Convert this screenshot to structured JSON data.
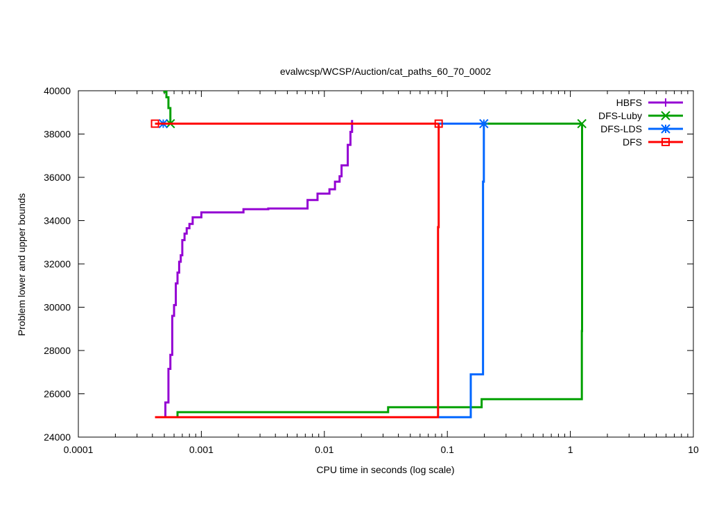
{
  "chart_data": {
    "type": "line",
    "title": "evalwcsp/WCSP/Auction/cat_paths_60_70_0002",
    "xlabel": "CPU time in seconds (log scale)",
    "ylabel": "Problem lower and upper bounds",
    "xscale": "log",
    "xlim": [
      0.0001,
      10
    ],
    "ylim": [
      24000,
      40000
    ],
    "x_ticks": [
      0.0001,
      0.001,
      0.01,
      0.1,
      1,
      10
    ],
    "x_tick_labels": [
      "0.0001",
      "0.001",
      "0.01",
      "0.1",
      "1",
      "10"
    ],
    "y_ticks": [
      24000,
      26000,
      28000,
      30000,
      32000,
      34000,
      36000,
      38000,
      40000
    ],
    "y_tick_labels": [
      "24000",
      "26000",
      "28000",
      "30000",
      "32000",
      "34000",
      "36000",
      "38000",
      "40000"
    ],
    "grid": false,
    "legend_position": "top-right",
    "series": [
      {
        "name": "HBFS",
        "color": "#9400d3",
        "marker": "plus",
        "lower": [
          [
            0.00051,
            24920
          ],
          [
            0.00051,
            25600
          ],
          [
            0.00054,
            25600
          ],
          [
            0.00054,
            27150
          ],
          [
            0.00056,
            27150
          ],
          [
            0.00056,
            27800
          ],
          [
            0.00058,
            27800
          ],
          [
            0.00058,
            29600
          ],
          [
            0.0006,
            29600
          ],
          [
            0.0006,
            30100
          ],
          [
            0.00062,
            30100
          ],
          [
            0.00062,
            31100
          ],
          [
            0.00064,
            31100
          ],
          [
            0.00064,
            31600
          ],
          [
            0.00066,
            31600
          ],
          [
            0.00066,
            32100
          ],
          [
            0.00068,
            32100
          ],
          [
            0.00068,
            32400
          ],
          [
            0.0007,
            32400
          ],
          [
            0.0007,
            33100
          ],
          [
            0.00073,
            33100
          ],
          [
            0.00073,
            33400
          ],
          [
            0.00076,
            33400
          ],
          [
            0.00076,
            33650
          ],
          [
            0.0008,
            33650
          ],
          [
            0.0008,
            33850
          ],
          [
            0.00085,
            33850
          ],
          [
            0.00085,
            34150
          ],
          [
            0.001,
            34150
          ],
          [
            0.001,
            34380
          ],
          [
            0.0022,
            34380
          ],
          [
            0.0022,
            34530
          ],
          [
            0.0035,
            34530
          ],
          [
            0.0035,
            34560
          ],
          [
            0.0073,
            34560
          ],
          [
            0.0073,
            34950
          ],
          [
            0.0088,
            34950
          ],
          [
            0.0088,
            35250
          ],
          [
            0.011,
            35250
          ],
          [
            0.011,
            35450
          ],
          [
            0.0122,
            35450
          ],
          [
            0.0122,
            35800
          ],
          [
            0.0133,
            35800
          ],
          [
            0.0133,
            36050
          ],
          [
            0.0138,
            36050
          ],
          [
            0.0138,
            36550
          ],
          [
            0.0155,
            36550
          ],
          [
            0.0155,
            37500
          ],
          [
            0.0163,
            37500
          ],
          [
            0.0163,
            38100
          ],
          [
            0.0168,
            38100
          ],
          [
            0.0168,
            38650
          ]
        ],
        "upper": []
      },
      {
        "name": "DFS-Luby",
        "color": "#00a000",
        "marker": "x",
        "lower": [
          [
            0.00064,
            24920
          ],
          [
            0.00064,
            25150
          ],
          [
            0.033,
            25150
          ],
          [
            0.033,
            25380
          ],
          [
            0.19,
            25380
          ],
          [
            0.19,
            25750
          ],
          [
            1.24,
            25750
          ],
          [
            1.24,
            28900
          ],
          [
            1.245,
            28900
          ],
          [
            1.245,
            38480
          ]
        ],
        "upper": [
          [
            0.0005,
            40100
          ],
          [
            0.0005,
            39950
          ],
          [
            0.00052,
            39950
          ],
          [
            0.00052,
            39700
          ],
          [
            0.00054,
            39700
          ],
          [
            0.00054,
            39200
          ],
          [
            0.00056,
            39200
          ],
          [
            0.00056,
            38480
          ],
          [
            1.24,
            38480
          ]
        ]
      },
      {
        "name": "DFS-LDS",
        "color": "#0066ff",
        "marker": "star",
        "lower": [
          [
            0.085,
            24920
          ],
          [
            0.155,
            24920
          ],
          [
            0.155,
            26900
          ],
          [
            0.195,
            26900
          ],
          [
            0.195,
            35800
          ],
          [
            0.198,
            35800
          ],
          [
            0.198,
            38480
          ]
        ],
        "upper": [
          [
            0.00049,
            38480
          ],
          [
            0.198,
            38480
          ]
        ]
      },
      {
        "name": "DFS",
        "color": "#ff0000",
        "marker": "square",
        "lower": [
          [
            0.00042,
            24920
          ],
          [
            0.084,
            24920
          ],
          [
            0.084,
            33700
          ],
          [
            0.085,
            33700
          ],
          [
            0.085,
            38480
          ]
        ],
        "upper": [
          [
            0.00042,
            38480
          ],
          [
            0.085,
            38480
          ]
        ]
      }
    ]
  }
}
